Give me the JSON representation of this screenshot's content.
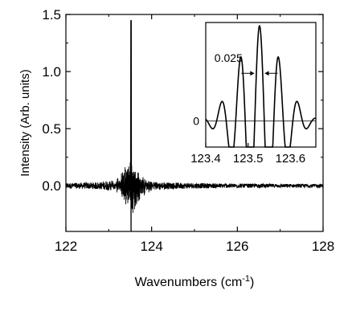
{
  "chart_data": [
    {
      "type": "line",
      "role": "main",
      "xlabel_parts": [
        "Wavenumbers (cm",
        "-1",
        ")"
      ],
      "ylabel": "Intensity (Arb. units)",
      "xlim": [
        122,
        128
      ],
      "ylim": [
        -0.4,
        1.5
      ],
      "x_ticks": [
        122,
        124,
        126,
        128
      ],
      "x_tick_labels": [
        "122",
        "124",
        "126",
        "128"
      ],
      "y_ticks": [
        0.0,
        0.5,
        1.0,
        1.5
      ],
      "y_tick_labels": [
        "0.0",
        "0.5",
        "1.0",
        "1.5"
      ],
      "grid": false,
      "line_color": "#000000",
      "series": [
        {
          "peak_center": 123.52,
          "peak_height": 1.45,
          "peak_min": -0.4,
          "noise_amplitude": 0.015
        }
      ]
    },
    {
      "type": "line",
      "role": "inset",
      "xlim": [
        123.4,
        123.66
      ],
      "ylim": [
        -0.4,
        1.5
      ],
      "x_ticks": [
        123.4,
        123.5,
        123.6
      ],
      "x_tick_labels": [
        "123.4",
        "123.5",
        "123.6"
      ],
      "y_tick_labels": [
        "0"
      ],
      "annotation": "0.025",
      "fwhm": 0.025,
      "line_color": "#000000",
      "series": [
        {
          "peak_center": 123.527,
          "peak_height": 1.45
        }
      ]
    }
  ]
}
